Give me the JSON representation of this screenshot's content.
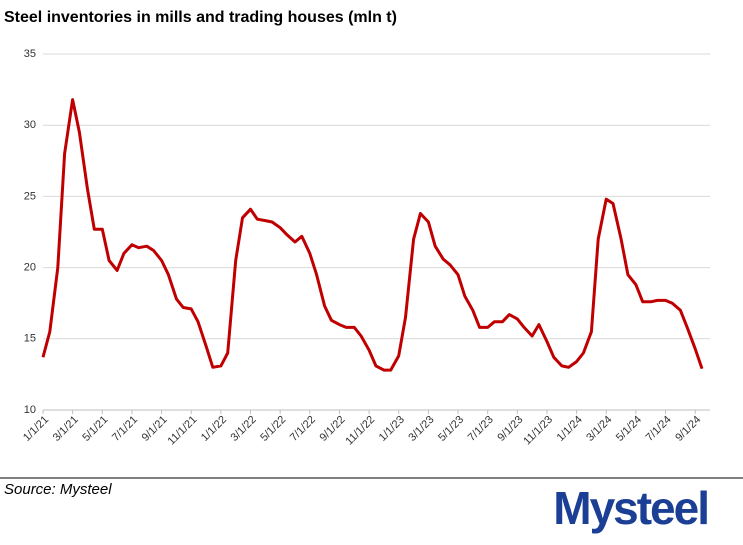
{
  "chart_data": {
    "type": "line",
    "title": "Steel inventories in mills and trading houses (mln t)",
    "source": "Source:  Mysteel",
    "logo": "Mysteel",
    "color": "#c00000",
    "grid": true,
    "ylim": [
      10,
      35
    ],
    "yticks": [
      10,
      15,
      20,
      25,
      30,
      35
    ],
    "xlim": [
      "1/1/21",
      "10/1/24"
    ],
    "xticks": [
      "1/1/21",
      "3/1/21",
      "5/1/21",
      "7/1/21",
      "9/1/21",
      "11/1/21",
      "1/1/22",
      "3/1/22",
      "5/1/22",
      "7/1/22",
      "9/1/22",
      "11/1/22",
      "1/1/23",
      "3/1/23",
      "5/1/23",
      "7/1/23",
      "9/1/23",
      "11/1/23",
      "1/1/24",
      "3/1/24",
      "5/1/24",
      "7/1/24",
      "9/1/24"
    ],
    "x": [
      "1/1/21",
      "1/15/21",
      "2/1/21",
      "2/15/21",
      "3/1/21",
      "3/15/21",
      "4/1/21",
      "4/15/21",
      "5/1/21",
      "5/15/21",
      "6/1/21",
      "6/15/21",
      "7/1/21",
      "7/15/21",
      "8/1/21",
      "8/15/21",
      "9/1/21",
      "9/15/21",
      "10/1/21",
      "10/15/21",
      "11/1/21",
      "11/15/21",
      "12/1/21",
      "12/15/21",
      "1/1/22",
      "1/15/22",
      "2/1/22",
      "2/15/22",
      "3/1/22",
      "3/15/22",
      "4/1/22",
      "4/15/22",
      "5/1/22",
      "5/15/22",
      "6/1/22",
      "6/15/22",
      "7/1/22",
      "7/15/22",
      "8/1/22",
      "8/15/22",
      "9/1/22",
      "9/15/22",
      "10/1/22",
      "10/15/22",
      "11/1/22",
      "11/15/22",
      "12/1/22",
      "12/15/22",
      "1/1/23",
      "1/15/23",
      "2/1/23",
      "2/15/23",
      "3/1/23",
      "3/15/23",
      "4/1/23",
      "4/15/23",
      "5/1/23",
      "5/15/23",
      "6/1/23",
      "6/15/23",
      "7/1/23",
      "7/15/23",
      "8/1/23",
      "8/15/23",
      "9/1/23",
      "9/15/23",
      "10/1/23",
      "10/15/23",
      "11/1/23",
      "11/15/23",
      "12/1/23",
      "12/15/23",
      "1/1/24",
      "1/15/24",
      "2/1/24",
      "2/15/24",
      "3/1/24",
      "3/15/24",
      "4/1/24",
      "4/15/24",
      "5/1/24",
      "5/15/24",
      "6/1/24",
      "6/15/24",
      "7/1/24",
      "7/15/24",
      "8/1/24",
      "8/15/24",
      "9/1/24",
      "9/15/24"
    ],
    "values": [
      13.7,
      15.5,
      20,
      28,
      31.8,
      29.5,
      25.5,
      22.7,
      22.7,
      20.5,
      19.8,
      21,
      21.6,
      21.4,
      21.5,
      21.2,
      20.5,
      19.5,
      17.8,
      17.2,
      17.1,
      16.2,
      14.5,
      13.0,
      13.1,
      14.0,
      20.5,
      23.5,
      24.1,
      23.4,
      23.3,
      23.2,
      22.8,
      22.3,
      21.8,
      22.2,
      21,
      19.5,
      17.3,
      16.3,
      16,
      15.8,
      15.8,
      15.2,
      14.2,
      13.1,
      12.8,
      12.8,
      13.8,
      16.5,
      22,
      23.8,
      23.2,
      21.5,
      20.6,
      20.2,
      19.5,
      18,
      17,
      15.8,
      15.8,
      16.2,
      16.2,
      16.7,
      16.4,
      15.8,
      15.2,
      16,
      14.8,
      13.7,
      13.1,
      13.0,
      13.4,
      14.0,
      15.5,
      22,
      24.8,
      24.5,
      22,
      19.5,
      18.8,
      17.6,
      17.6,
      17.7,
      17.7,
      17.5,
      17.0,
      15.8,
      14.3,
      12.9
    ]
  }
}
